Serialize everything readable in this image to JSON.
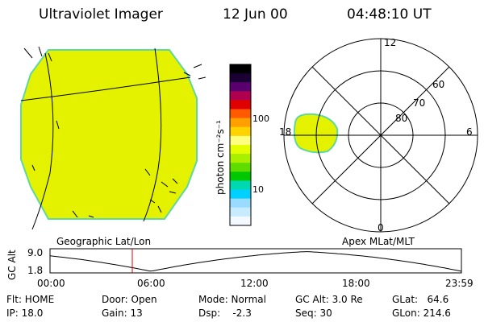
{
  "header": {
    "title": "Ultraviolet Imager",
    "date": "12 Jun 00",
    "time": "04:48:10 UT"
  },
  "colorbar": {
    "unit_label": "photon cm⁻²s⁻¹",
    "tick_high": "100",
    "tick_low": "10",
    "colors": [
      "#000000",
      "#1a0033",
      "#5a006e",
      "#b00050",
      "#e00000",
      "#ff5a00",
      "#ffa000",
      "#ffd200",
      "#ffff80",
      "#e4ff00",
      "#a8ef00",
      "#5fdc00",
      "#00c800",
      "#00d8b0",
      "#00d0ff",
      "#9adcff",
      "#c8ecff",
      "#f4f8ff"
    ]
  },
  "polar": {
    "mlt_labels": {
      "top": "12",
      "right": "6",
      "bottom": "0",
      "left": "18"
    },
    "lat_labels": [
      "60",
      "70",
      "80"
    ]
  },
  "timeline": {
    "left_label": "Geographic Lat/Lon",
    "right_label": "Apex MLat/MLT",
    "y_axis_label": "GC Alt",
    "y_max": "9.0",
    "y_min": "1.8",
    "x_ticks": [
      "00:00",
      "06:00",
      "12:00",
      "18:00",
      "23:59"
    ],
    "current_time_fraction": 0.2
  },
  "info": {
    "flt": "Flt: HOME",
    "ip": "IP: 18.0",
    "door": "Door: Open",
    "gain": "Gain: 13",
    "mode": "Mode: Normal",
    "dsp": "Dsp:    -2.3",
    "gcalt": "GC Alt: 3.0 Re",
    "seq": "Seq: 30",
    "glat": "GLat:   64.6",
    "glon": "GLon: 214.6"
  },
  "colors": {
    "disk_fill": "#e4f200",
    "disk_edge": "#5fd8a0",
    "red_marker": "#e00000"
  }
}
